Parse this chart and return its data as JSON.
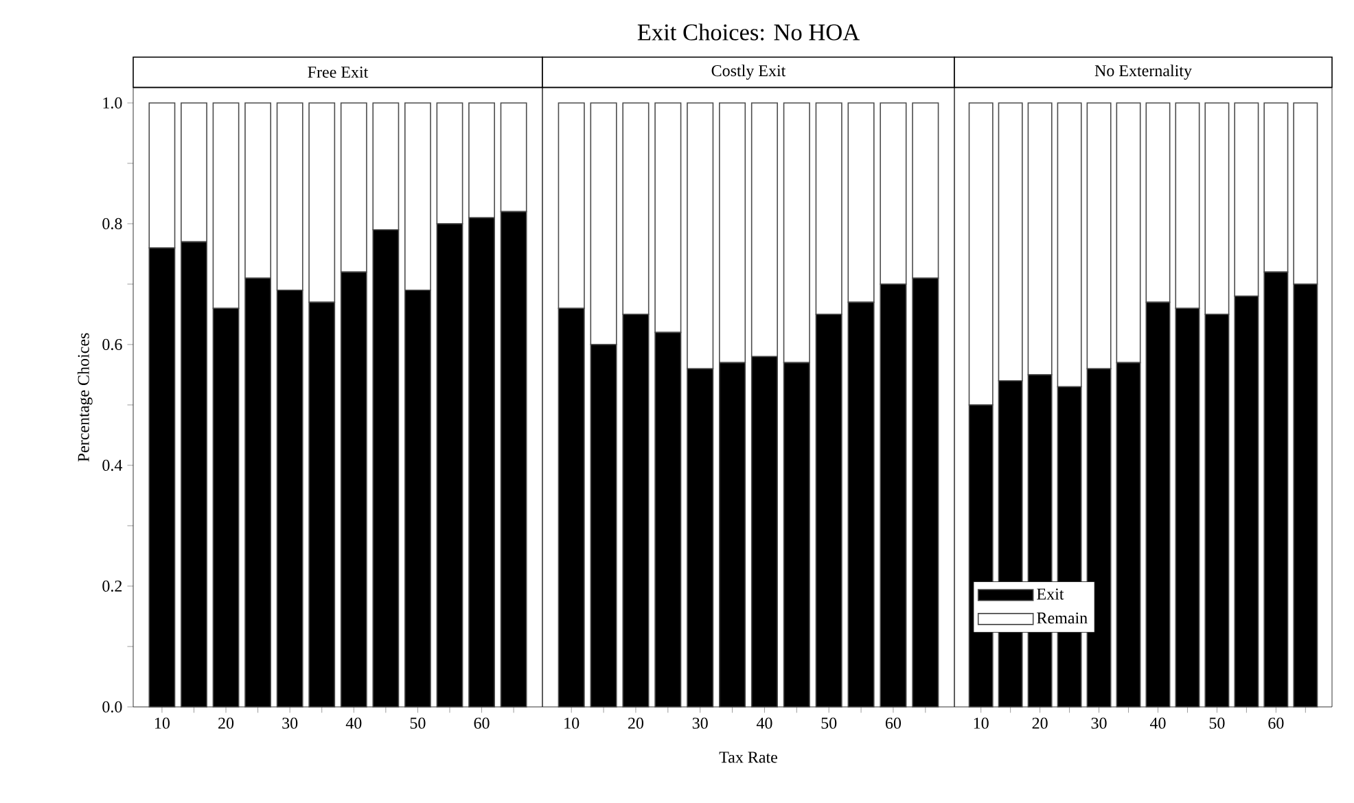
{
  "chart_data": [
    {
      "type": "bar",
      "subtitle": "Free Exit",
      "ylabel": "Percentage Choices",
      "stacked": true,
      "categories": [
        "10",
        null,
        "20",
        null,
        "30",
        null,
        "40",
        null,
        "50",
        null,
        "60",
        null
      ],
      "series": [
        {
          "color": "#000000",
          "values": [
            0.76,
            0.77,
            0.66,
            0.71,
            0.69,
            0.67,
            0.72,
            0.79,
            0.69,
            0.8,
            0.81,
            0.82
          ]
        },
        {
          "color": "#ffffff",
          "values": [
            0.24,
            0.23,
            0.34,
            0.29,
            0.31,
            0.33,
            0.28,
            0.21,
            0.31,
            0.2,
            0.19,
            0.18
          ]
        }
      ],
      "ylim": [
        0,
        1.025
      ],
      "yticks": [
        {
          "value": 0,
          "label": "0.0"
        },
        {
          "value": 0.1,
          "label": null
        },
        {
          "value": 0.2,
          "label": "0.2"
        },
        {
          "value": 0.3,
          "label": null
        },
        {
          "value": 0.4,
          "label": "0.4"
        },
        {
          "value": 0.5,
          "label": null
        },
        {
          "value": 0.6,
          "label": "0.6"
        },
        {
          "value": 0.7,
          "label": null
        },
        {
          "value": 0.8,
          "label": "0.8"
        },
        {
          "value": 0.9,
          "label": null
        },
        {
          "value": 1.0,
          "label": "1.0"
        }
      ]
    },
    {
      "type": "bar",
      "title": "Exit Choices: No HOA",
      "subtitle": "Costly Exit",
      "xlabel": "Tax Rate",
      "stacked": true,
      "tick_labels": "x",
      "categories": [
        "10",
        null,
        "20",
        null,
        "30",
        null,
        "40",
        null,
        "50",
        null,
        "60",
        null
      ],
      "series": [
        {
          "color": "#000000",
          "values": [
            0.66,
            0.6,
            0.65,
            0.62,
            0.56,
            0.57,
            0.58,
            0.57,
            0.65,
            0.67,
            0.7,
            0.71
          ]
        },
        {
          "color": "#ffffff",
          "values": [
            0.34,
            0.4,
            0.35,
            0.38,
            0.44,
            0.43,
            0.42,
            0.43,
            0.35,
            0.33,
            0.3,
            0.29
          ]
        }
      ],
      "ylim": [
        0,
        1.025
      ]
    },
    {
      "type": "bar",
      "subtitle": "No Externality",
      "stacked": true,
      "tick_labels": "x",
      "legend": "bottom left",
      "categories": [
        "10",
        null,
        "20",
        null,
        "30",
        null,
        "40",
        null,
        "50",
        null,
        "60",
        null
      ],
      "series": [
        {
          "name": "Exit",
          "color": "#000000",
          "values": [
            0.5,
            0.54,
            0.55,
            0.53,
            0.56,
            0.57,
            0.67,
            0.66,
            0.65,
            0.68,
            0.72,
            0.7
          ]
        },
        {
          "name": "Remain",
          "color": "#ffffff",
          "values": [
            0.5,
            0.46,
            0.45,
            0.47,
            0.44,
            0.43,
            0.33,
            0.34,
            0.35,
            0.32,
            0.28,
            0.3
          ]
        }
      ],
      "ylim": [
        0,
        1.025
      ]
    }
  ]
}
